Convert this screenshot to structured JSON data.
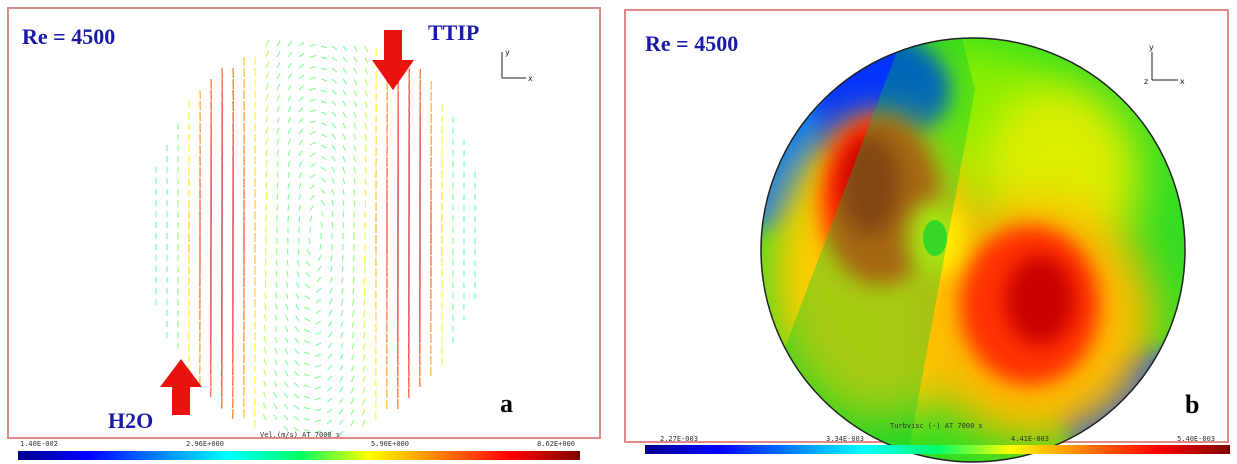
{
  "panels": [
    {
      "annotation": "Re = 4500",
      "label": "a",
      "inlet_top": "TTIP",
      "inlet_bottom": "H2O",
      "triad": [
        "y",
        "x"
      ],
      "colorbar": {
        "caption": "Vel.(m/s) AT 7000 s",
        "labels": [
          "1.40E-002",
          "2.96E+000",
          "5.90E+000",
          "8.62E+000"
        ]
      }
    },
    {
      "annotation": "Re = 4500",
      "label": "b",
      "triad": [
        "y",
        "z",
        "x"
      ],
      "colorbar": {
        "caption": "Turbvisc (-) AT 7000 s",
        "labels": [
          "2.27E-003",
          "3.34E-003",
          "4.41E-003",
          "5.40E-003"
        ]
      }
    }
  ]
}
